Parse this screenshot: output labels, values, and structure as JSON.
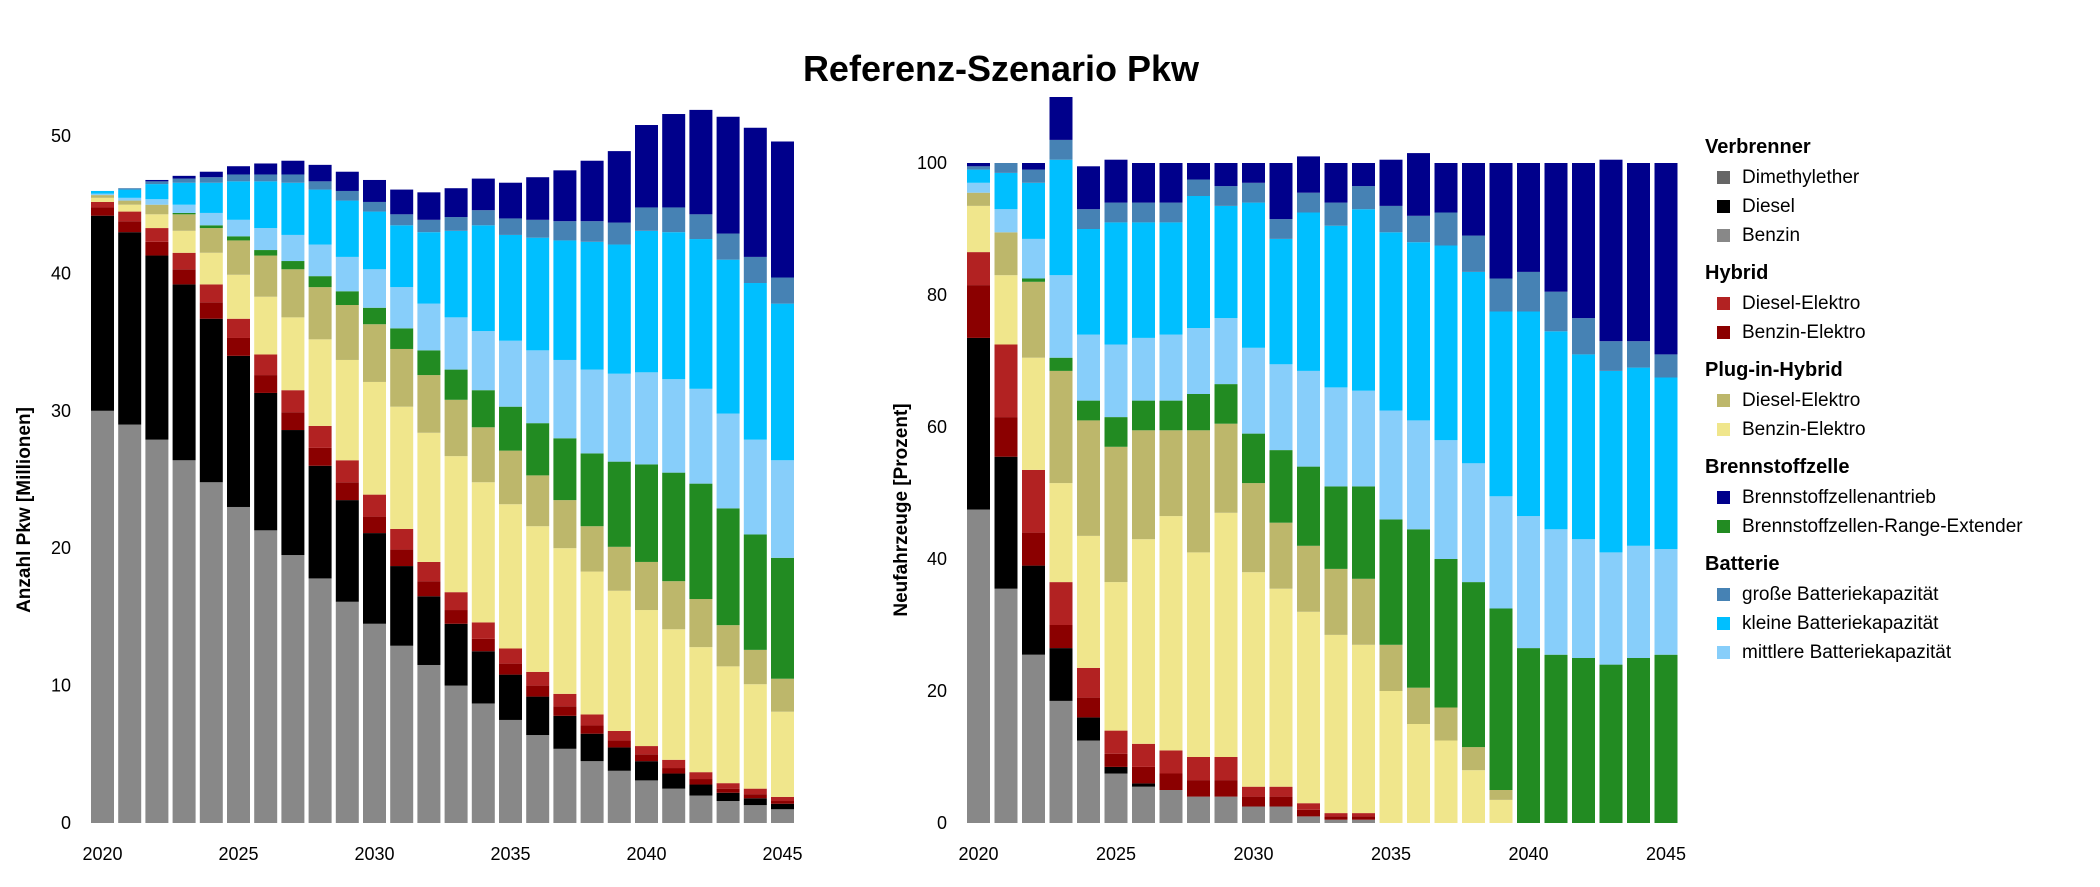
{
  "title": "Referenz-Szenario Pkw",
  "legend": {
    "groups": [
      {
        "title": "Verbrenner",
        "items": [
          {
            "label": "Dimethylether",
            "color": "#666666"
          },
          {
            "label": "Diesel",
            "color": "#000000"
          },
          {
            "label": "Benzin",
            "color": "#888888"
          }
        ]
      },
      {
        "title": "Hybrid",
        "items": [
          {
            "label": "Diesel-Elektro",
            "color": "#b22222"
          },
          {
            "label": "Benzin-Elektro",
            "color": "#8b0000"
          }
        ]
      },
      {
        "title": "Plug-in-Hybrid",
        "items": [
          {
            "label": "Diesel-Elektro",
            "color": "#bdb76b"
          },
          {
            "label": "Benzin-Elektro",
            "color": "#f0e68c"
          }
        ]
      },
      {
        "title": "Brennstoffzelle",
        "items": [
          {
            "label": "Brennstoffzellenantrieb",
            "color": "#00008b"
          },
          {
            "label": "Brennstoffzellen-Range-Extender",
            "color": "#228b22"
          }
        ]
      },
      {
        "title": "Batterie",
        "items": [
          {
            "label": "große Batteriekapazität",
            "color": "#4682b4"
          },
          {
            "label": "kleine Batteriekapazität",
            "color": "#00bfff"
          },
          {
            "label": "mittlere Batteriekapazität",
            "color": "#87cefa"
          }
        ]
      }
    ]
  },
  "chart_data": [
    {
      "type": "bar",
      "stacked": true,
      "ylabel": "Anzahl Pkw [Millionen]",
      "ylim": [
        0,
        50
      ],
      "yticks": [
        0,
        10,
        20,
        30,
        40,
        50
      ],
      "xticks": [
        "2020",
        "2025",
        "2030",
        "2035",
        "2040",
        "2045"
      ],
      "x": [
        2020,
        2021,
        2022,
        2023,
        2024,
        2025,
        2026,
        2027,
        2028,
        2029,
        2030,
        2031,
        2032,
        2033,
        2034,
        2035,
        2036,
        2037,
        2038,
        2039,
        2040,
        2041,
        2042,
        2043,
        2044,
        2045
      ],
      "series_order": [
        "Benzin",
        "Diesel",
        "Benzin-Elektro (Hybrid)",
        "Diesel-Elektro (Hybrid)",
        "Benzin-Elektro (Plug-in)",
        "Diesel-Elektro (Plug-in)",
        "Brennstoffzellen-Range-Extender",
        "mittlere Batteriekapazität",
        "kleine Batteriekapazität",
        "große Batteriekapazität",
        "Brennstoffzellenantrieb"
      ],
      "series": [
        {
          "name": "Benzin",
          "color": "#888888",
          "values": [
            30.0,
            29.0,
            27.9,
            26.4,
            24.8,
            23.0,
            21.3,
            19.5,
            17.8,
            16.1,
            14.5,
            12.9,
            11.5,
            10.0,
            8.7,
            7.5,
            6.4,
            5.4,
            4.5,
            3.8,
            3.1,
            2.5,
            2.0,
            1.6,
            1.3,
            1.0
          ]
        },
        {
          "name": "Diesel",
          "color": "#000000",
          "values": [
            14.2,
            14.0,
            13.4,
            12.8,
            11.9,
            11.0,
            10.0,
            9.1,
            8.2,
            7.4,
            6.6,
            5.8,
            5.0,
            4.5,
            3.8,
            3.3,
            2.8,
            2.4,
            2.0,
            1.7,
            1.4,
            1.1,
            0.8,
            0.6,
            0.5,
            0.4
          ]
        },
        {
          "name": "Benzin-Elektro (Hybrid)",
          "color": "#8b0000",
          "values": [
            0.6,
            0.8,
            1.0,
            1.1,
            1.2,
            1.3,
            1.3,
            1.3,
            1.3,
            1.3,
            1.2,
            1.2,
            1.1,
            1.0,
            0.9,
            0.8,
            0.8,
            0.7,
            0.6,
            0.5,
            0.5,
            0.4,
            0.4,
            0.3,
            0.3,
            0.2
          ]
        },
        {
          "name": "Diesel-Elektro (Hybrid)",
          "color": "#b22222",
          "values": [
            0.4,
            0.7,
            1.0,
            1.2,
            1.3,
            1.4,
            1.5,
            1.6,
            1.6,
            1.6,
            1.6,
            1.5,
            1.4,
            1.3,
            1.2,
            1.1,
            1.0,
            0.9,
            0.8,
            0.7,
            0.6,
            0.6,
            0.5,
            0.4,
            0.4,
            0.3
          ]
        },
        {
          "name": "Benzin-Elektro (Plug-in)",
          "color": "#f0e68c",
          "values": [
            0.3,
            0.5,
            1.0,
            1.6,
            2.3,
            3.2,
            4.2,
            5.3,
            6.3,
            7.3,
            8.2,
            8.9,
            9.4,
            9.9,
            10.2,
            10.5,
            10.6,
            10.6,
            10.4,
            10.2,
            9.9,
            9.5,
            9.1,
            8.5,
            7.6,
            6.2
          ]
        },
        {
          "name": "Diesel-Elektro (Plug-in)",
          "color": "#bdb76b",
          "values": [
            0.2,
            0.3,
            0.7,
            1.2,
            1.8,
            2.5,
            3.0,
            3.5,
            3.8,
            4.0,
            4.2,
            4.2,
            4.2,
            4.1,
            4.0,
            3.9,
            3.7,
            3.5,
            3.3,
            3.2,
            3.5,
            3.5,
            3.5,
            3.0,
            2.5,
            2.4
          ]
        },
        {
          "name": "Brennstoffzellen-Range-Extender",
          "color": "#228b22",
          "values": [
            0.0,
            0.0,
            0.0,
            0.1,
            0.2,
            0.3,
            0.4,
            0.6,
            0.8,
            1.0,
            1.2,
            1.5,
            1.8,
            2.2,
            2.7,
            3.2,
            3.8,
            4.5,
            5.3,
            6.2,
            7.1,
            7.9,
            8.4,
            8.5,
            8.4,
            8.8
          ]
        },
        {
          "name": "mittlere Batteriekapazität",
          "color": "#87cefa",
          "values": [
            0.1,
            0.2,
            0.4,
            0.6,
            0.9,
            1.2,
            1.6,
            1.9,
            2.3,
            2.5,
            2.8,
            3.0,
            3.4,
            3.8,
            4.3,
            4.8,
            5.3,
            5.7,
            6.1,
            6.4,
            6.7,
            6.8,
            6.9,
            6.9,
            6.9,
            7.1
          ]
        },
        {
          "name": "kleine Batteriekapazität",
          "color": "#00bfff",
          "values": [
            0.2,
            0.6,
            1.1,
            1.6,
            2.2,
            2.8,
            3.4,
            3.8,
            4.0,
            4.1,
            4.2,
            4.5,
            5.2,
            6.3,
            7.7,
            7.7,
            8.2,
            8.7,
            9.3,
            9.4,
            10.3,
            10.7,
            10.9,
            11.2,
            11.4,
            11.4
          ]
        },
        {
          "name": "große Batteriekapazität",
          "color": "#4682b4",
          "values": [
            0.0,
            0.1,
            0.2,
            0.3,
            0.4,
            0.5,
            0.5,
            0.6,
            0.6,
            0.7,
            0.7,
            0.8,
            0.9,
            1.0,
            1.1,
            1.2,
            1.3,
            1.4,
            1.5,
            1.6,
            1.7,
            1.8,
            1.8,
            1.9,
            1.9,
            1.9
          ]
        },
        {
          "name": "Brennstoffzellenantrieb",
          "color": "#00008b",
          "values": [
            0.0,
            0.0,
            0.1,
            0.2,
            0.4,
            0.6,
            0.8,
            1.0,
            1.2,
            1.4,
            1.6,
            1.8,
            2.0,
            2.1,
            2.3,
            2.6,
            3.1,
            3.7,
            4.4,
            5.2,
            6.0,
            6.8,
            7.6,
            8.5,
            9.4,
            9.9
          ]
        }
      ]
    },
    {
      "type": "bar",
      "stacked": true,
      "ylabel": "Neufahrzeuge [Prozent]",
      "ylim": [
        0,
        100
      ],
      "yticks": [
        0,
        20,
        40,
        60,
        80,
        100
      ],
      "xticks": [
        "2020",
        "2025",
        "2030",
        "2035",
        "2040",
        "2045"
      ],
      "x": [
        2020,
        2021,
        2022,
        2023,
        2024,
        2025,
        2026,
        2027,
        2028,
        2029,
        2030,
        2031,
        2032,
        2033,
        2034,
        2035,
        2036,
        2037,
        2038,
        2039,
        2040,
        2041,
        2042,
        2043,
        2044,
        2045
      ],
      "series_order": [
        "Benzin",
        "Diesel",
        "Benzin-Elektro (Hybrid)",
        "Diesel-Elektro (Hybrid)",
        "Benzin-Elektro (Plug-in)",
        "Diesel-Elektro (Plug-in)",
        "Brennstoffzellen-Range-Extender",
        "mittlere Batteriekapazität",
        "kleine Batteriekapazität",
        "große Batteriekapazität",
        "Brennstoffzellenantrieb"
      ],
      "series": [
        {
          "name": "Benzin",
          "color": "#888888",
          "values": [
            47.5,
            35.5,
            25.5,
            18.5,
            12.5,
            7.5,
            5.5,
            5.0,
            4.0,
            4.0,
            2.5,
            2.5,
            1.0,
            0.5,
            0.5,
            0,
            0,
            0,
            0,
            0,
            0,
            0,
            0,
            0,
            0,
            0
          ]
        },
        {
          "name": "Diesel",
          "color": "#000000",
          "values": [
            26.0,
            20.0,
            13.5,
            8.0,
            3.5,
            1.0,
            0.5,
            0,
            0,
            0,
            0,
            0,
            0,
            0,
            0,
            0,
            0,
            0,
            0,
            0,
            0,
            0,
            0,
            0,
            0,
            0
          ]
        },
        {
          "name": "Benzin-Elektro (Hybrid)",
          "color": "#8b0000",
          "values": [
            8.0,
            6.0,
            5.0,
            3.5,
            3.0,
            2.0,
            2.5,
            2.5,
            2.5,
            2.5,
            1.5,
            1.5,
            1.0,
            0.5,
            0.5,
            0,
            0,
            0,
            0,
            0,
            0,
            0,
            0,
            0,
            0,
            0
          ]
        },
        {
          "name": "Diesel-Elektro (Hybrid)",
          "color": "#b22222",
          "values": [
            5.0,
            11.0,
            9.5,
            6.5,
            4.5,
            3.5,
            3.5,
            3.5,
            3.5,
            3.5,
            1.5,
            1.5,
            1.0,
            0.5,
            0.5,
            0,
            0,
            0,
            0,
            0,
            0,
            0,
            0,
            0,
            0,
            0
          ]
        },
        {
          "name": "Benzin-Elektro (Plug-in)",
          "color": "#f0e68c",
          "values": [
            7.0,
            10.5,
            17.0,
            15.0,
            20.0,
            22.5,
            31.0,
            35.5,
            31.0,
            37.0,
            32.5,
            30.0,
            29.0,
            27.0,
            25.5,
            20.0,
            15.0,
            12.5,
            8.0,
            3.5,
            0,
            0,
            0,
            0,
            0,
            0
          ]
        },
        {
          "name": "Diesel-Elektro (Plug-in)",
          "color": "#bdb76b",
          "values": [
            2.0,
            6.5,
            11.5,
            17.0,
            17.5,
            20.5,
            16.5,
            13.0,
            18.5,
            13.5,
            13.5,
            10.0,
            10.0,
            10.0,
            10.0,
            7.0,
            5.5,
            5.0,
            3.5,
            1.5,
            0,
            0,
            0,
            0,
            0,
            0
          ]
        },
        {
          "name": "Brennstoffzellen-Range-Extender",
          "color": "#228b22",
          "values": [
            0,
            0,
            0.5,
            2.0,
            3.0,
            4.5,
            4.5,
            4.5,
            5.5,
            6.0,
            7.5,
            11.0,
            12.0,
            12.5,
            14.0,
            19.0,
            24.0,
            22.5,
            25.0,
            27.5,
            26.5,
            25.5,
            25.0,
            24.0,
            25.0,
            25.5
          ]
        },
        {
          "name": "mittlere Batteriekapazität",
          "color": "#87cefa",
          "values": [
            1.5,
            3.5,
            6.0,
            12.5,
            10.0,
            11.0,
            9.5,
            10.0,
            10.0,
            10.0,
            13.0,
            13.0,
            14.5,
            15.0,
            14.5,
            16.5,
            16.5,
            18.0,
            18.0,
            17.0,
            20.0,
            19.0,
            18.0,
            17.0,
            17.0,
            16.0
          ]
        },
        {
          "name": "kleine Batteriekapazität",
          "color": "#00bfff",
          "values": [
            2.0,
            5.5,
            8.5,
            17.5,
            16.0,
            18.5,
            17.5,
            17.0,
            20.0,
            17.0,
            22.0,
            19.0,
            24.0,
            24.5,
            27.5,
            27.0,
            27.0,
            29.5,
            29.0,
            28.0,
            31.0,
            30.0,
            28.0,
            27.5,
            27.0,
            26.0
          ]
        },
        {
          "name": "große Batteriekapazität",
          "color": "#4682b4",
          "values": [
            0.5,
            1.5,
            2.0,
            3.0,
            3.0,
            3.0,
            3.0,
            3.0,
            2.5,
            3.0,
            3.0,
            3.0,
            3.0,
            3.5,
            3.5,
            4.0,
            4.0,
            5.0,
            5.5,
            5.0,
            6.0,
            6.0,
            5.5,
            4.5,
            4.0,
            3.5
          ]
        },
        {
          "name": "Brennstoffzellenantrieb",
          "color": "#00008b",
          "values": [
            0.5,
            0,
            1.0,
            6.5,
            6.5,
            6.5,
            6.0,
            6.0,
            2.5,
            3.5,
            3.0,
            8.5,
            5.5,
            6.0,
            3.5,
            7.0,
            9.5,
            7.5,
            11.0,
            17.5,
            16.5,
            19.5,
            23.5,
            27.5,
            27.0,
            29.0
          ]
        }
      ]
    }
  ]
}
